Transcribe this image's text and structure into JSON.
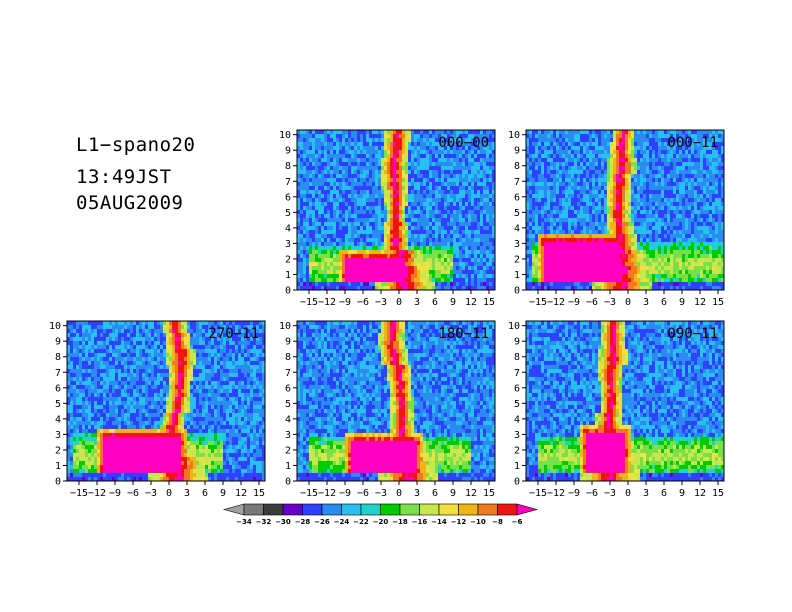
{
  "header": {
    "line1": "L1−spano20",
    "line2": "13:49JST",
    "line3": "05AUG2009"
  },
  "chart_data": [
    {
      "type": "heatmap",
      "panel_label": "000−00",
      "xticks": [
        -15,
        -12,
        -9,
        -6,
        -3,
        0,
        3,
        6,
        9,
        12,
        15
      ],
      "xtick_labels": [
        "−15",
        "−12",
        "−9",
        "−6",
        "−3",
        "0",
        "3",
        "6",
        "9",
        "12",
        "15"
      ],
      "xlim": [
        -17,
        16
      ],
      "ylim": [
        0,
        10.3
      ],
      "yticks": [
        0,
        1,
        2,
        3,
        4,
        5,
        6,
        7,
        8,
        9,
        10
      ],
      "band": {
        "center_x": -1.5,
        "height": 2.8,
        "x_from": -15,
        "x_to": 9
      },
      "blob": {
        "left": -10,
        "right": 2,
        "top": 2.5,
        "bottom": 0.6
      },
      "plume_x": [
        1,
        0.9,
        0.5,
        -0.5,
        -0.5,
        -0.5,
        -0.5,
        -0.8,
        -0.8,
        -0.5,
        -0.2
      ],
      "plume_width": [
        3.2,
        2.6,
        2.2,
        1.4,
        1.3,
        1.0,
        1.2,
        1.4,
        1.5,
        1.4,
        1.3
      ]
    },
    {
      "type": "heatmap",
      "panel_label": "000−11",
      "xticks": [
        -15,
        -12,
        -9,
        -6,
        -3,
        0,
        3,
        6,
        9,
        12,
        15
      ],
      "xtick_labels": [
        "−15",
        "−12",
        "−9",
        "−6",
        "−3",
        "0",
        "3",
        "6",
        "9",
        "12",
        "15"
      ],
      "xlim": [
        -17,
        16
      ],
      "ylim": [
        0,
        10.3
      ],
      "yticks": [
        0,
        1,
        2,
        3,
        4,
        5,
        6,
        7,
        8,
        9,
        10
      ],
      "band": {
        "center_x": -3,
        "height": 3.0,
        "x_from": -16,
        "x_to": 16
      },
      "blob": {
        "left": -15,
        "right": -0.5,
        "top": 3.6,
        "bottom": 0.6
      },
      "plume_x": [
        -1,
        -1,
        -1,
        -1.2,
        -1.4,
        -1.6,
        -1.6,
        -1.4,
        -1.0,
        -1.0,
        -0.8
      ],
      "plume_width": [
        3.0,
        3.0,
        2.4,
        1.8,
        1.4,
        1.2,
        1.2,
        1.3,
        1.5,
        1.3,
        1.2
      ]
    },
    {
      "type": "heatmap",
      "panel_label": "270−11",
      "xticks": [
        -15,
        -12,
        -9,
        -6,
        -3,
        0,
        3,
        6,
        9,
        12,
        15
      ],
      "xtick_labels": [
        "−15",
        "−12",
        "−9",
        "−6",
        "−3",
        "0",
        "3",
        "6",
        "9",
        "12",
        "15"
      ],
      "xlim": [
        -17,
        16
      ],
      "ylim": [
        0,
        10.3
      ],
      "yticks": [
        0,
        1,
        2,
        3,
        4,
        5,
        6,
        7,
        8,
        9,
        10
      ],
      "band": {
        "center_x": -3,
        "height": 3.0,
        "x_from": -16,
        "x_to": 9
      },
      "blob": {
        "left": -12,
        "right": 3,
        "top": 3.3,
        "bottom": 0.6
      },
      "plume_x": [
        1.5,
        1.5,
        1.0,
        0.5,
        0.8,
        1.5,
        1.8,
        2.0,
        2.0,
        1.5,
        1.0
      ],
      "plume_width": [
        3.0,
        2.8,
        2.2,
        1.3,
        1.2,
        1.2,
        1.2,
        1.3,
        1.5,
        1.3,
        1.2
      ]
    },
    {
      "type": "heatmap",
      "panel_label": "180−11",
      "xticks": [
        -15,
        -12,
        -9,
        -6,
        -3,
        0,
        3,
        6,
        9,
        12,
        15
      ],
      "xtick_labels": [
        "−15",
        "−12",
        "−9",
        "−6",
        "−3",
        "0",
        "3",
        "6",
        "9",
        "12",
        "15"
      ],
      "xlim": [
        -17,
        16
      ],
      "ylim": [
        0,
        10.3
      ],
      "yticks": [
        0,
        1,
        2,
        3,
        4,
        5,
        6,
        7,
        8,
        9,
        10
      ],
      "band": {
        "center_x": -1,
        "height": 2.8,
        "x_from": -15,
        "x_to": 12
      },
      "blob": {
        "left": -9,
        "right": 4,
        "top": 3.0,
        "bottom": 0.6
      },
      "plume_x": [
        1.5,
        1.5,
        1.0,
        0.5,
        0.5,
        0.5,
        0.3,
        0.0,
        -0.8,
        -1.2,
        -1.0
      ],
      "plume_width": [
        3.2,
        2.8,
        2.2,
        1.3,
        1.2,
        1.2,
        1.2,
        1.3,
        1.5,
        1.3,
        1.3
      ]
    },
    {
      "type": "heatmap",
      "panel_label": "090−11",
      "xticks": [
        -15,
        -12,
        -9,
        -6,
        -3,
        0,
        3,
        6,
        9,
        12,
        15
      ],
      "xtick_labels": [
        "−15",
        "−12",
        "−9",
        "−6",
        "−3",
        "0",
        "3",
        "6",
        "9",
        "12",
        "15"
      ],
      "xlim": [
        -17,
        16
      ],
      "ylim": [
        0,
        10.3
      ],
      "yticks": [
        0,
        1,
        2,
        3,
        4,
        5,
        6,
        7,
        8,
        9,
        10
      ],
      "band": {
        "center_x": 0,
        "height": 2.8,
        "x_from": -15,
        "x_to": 16
      },
      "blob": {
        "left": -8,
        "right": 0.5,
        "top": 3.5,
        "bottom": 0.6
      },
      "plume_x": [
        -3,
        -3,
        -3,
        -3.5,
        -3.2,
        -2.8,
        -2.8,
        -3.0,
        -2.5,
        -2.5,
        -2.5
      ],
      "plume_width": [
        3.0,
        3.0,
        2.4,
        1.8,
        1.4,
        1.2,
        1.2,
        1.3,
        1.5,
        1.3,
        1.2
      ]
    }
  ],
  "colorbar": {
    "labels": [
      "−34",
      "−32",
      "−30",
      "−28",
      "−26",
      "−24",
      "−22",
      "−20",
      "−18",
      "−16",
      "−14",
      "−12",
      "−10",
      "−8",
      "−6"
    ],
    "colors": [
      "#a0a0a0",
      "#787878",
      "#3c3c3c",
      "#6a00c8",
      "#3040ff",
      "#2a8cf0",
      "#28c0f0",
      "#20d2c8",
      "#00cc00",
      "#7ae04a",
      "#c8e650",
      "#f0e040",
      "#f0b418",
      "#f07820",
      "#f01414",
      "#ff00c0"
    ]
  }
}
